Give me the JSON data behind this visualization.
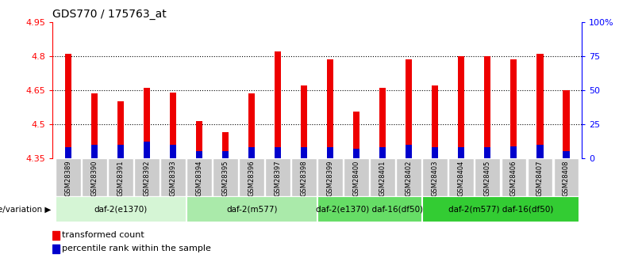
{
  "title": "GDS770 / 175763_at",
  "samples": [
    "GSM28389",
    "GSM28390",
    "GSM28391",
    "GSM28392",
    "GSM28393",
    "GSM28394",
    "GSM28395",
    "GSM28396",
    "GSM28397",
    "GSM28398",
    "GSM28399",
    "GSM28400",
    "GSM28401",
    "GSM28402",
    "GSM28403",
    "GSM28404",
    "GSM28405",
    "GSM28406",
    "GSM28407",
    "GSM28408"
  ],
  "transformed_counts": [
    4.81,
    4.635,
    4.6,
    4.66,
    4.64,
    4.515,
    4.465,
    4.635,
    4.82,
    4.67,
    4.785,
    4.555,
    4.66,
    4.785,
    4.67,
    4.8,
    4.8,
    4.785,
    4.81,
    4.648
  ],
  "percentile_ranks": [
    8,
    10,
    10,
    12,
    10,
    5,
    5,
    8,
    8,
    8,
    8,
    7,
    8,
    10,
    8,
    8,
    8,
    9,
    10,
    5
  ],
  "bar_color_red": "#EE0000",
  "bar_color_blue": "#0000CC",
  "ylim_left": [
    4.35,
    4.95
  ],
  "ylim_right": [
    0,
    100
  ],
  "yticks_left": [
    4.35,
    4.5,
    4.65,
    4.8,
    4.95
  ],
  "ytick_labels_left": [
    "4.35",
    "4.5",
    "4.65",
    "4.8",
    "4.95"
  ],
  "yticks_right": [
    0,
    25,
    50,
    75,
    100
  ],
  "ytick_labels_right": [
    "0",
    "25",
    "50",
    "75",
    "100%"
  ],
  "hlines": [
    4.5,
    4.65,
    4.8
  ],
  "groups": [
    {
      "label": "daf-2(e1370)",
      "start": 0,
      "end": 5,
      "color": "#d5f5d5"
    },
    {
      "label": "daf-2(m577)",
      "start": 5,
      "end": 10,
      "color": "#aaeaaa"
    },
    {
      "label": "daf-2(e1370) daf-16(df50)",
      "start": 10,
      "end": 14,
      "color": "#66dd66"
    },
    {
      "label": "daf-2(m577) daf-16(df50)",
      "start": 14,
      "end": 20,
      "color": "#33cc33"
    }
  ],
  "group_label": "genotype/variation",
  "legend_red_label": "transformed count",
  "legend_blue_label": "percentile rank within the sample",
  "bar_width": 0.25,
  "blue_bar_width": 0.25,
  "bar_bottom": 4.35,
  "xtick_bg_color": "#cccccc",
  "plot_bg_color": "#ffffff",
  "n_samples": 20
}
